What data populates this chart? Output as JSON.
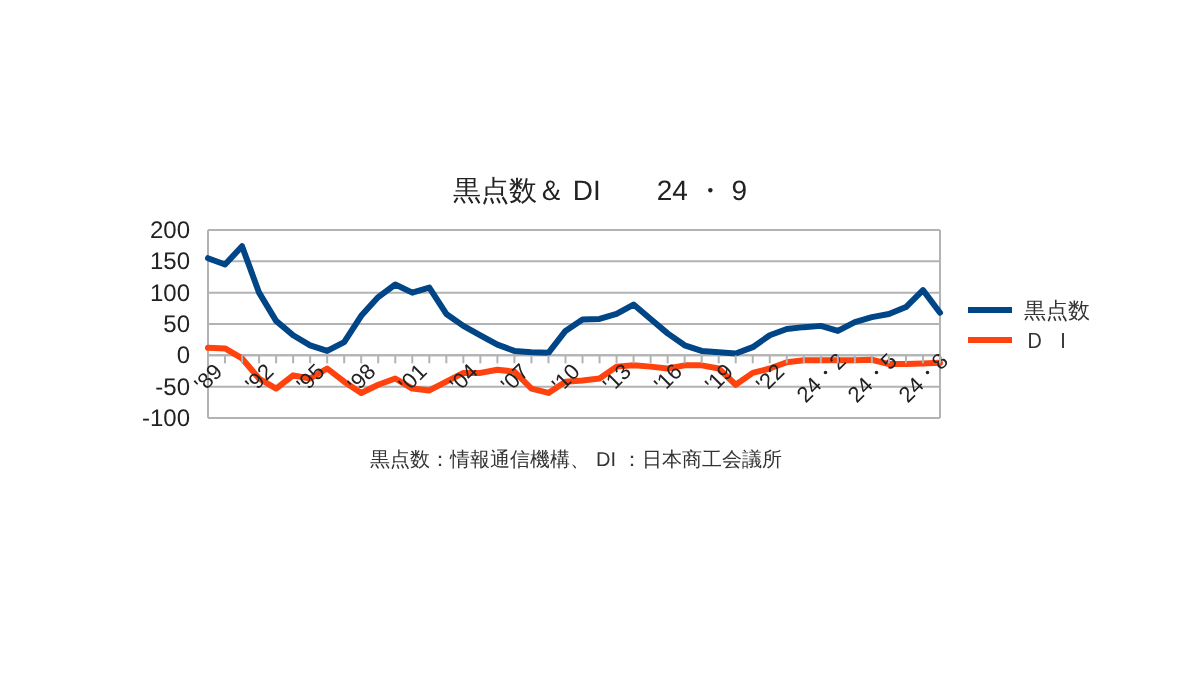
{
  "chart_data": {
    "type": "line",
    "title": "黒点数＆ DI　　24 ・ 9",
    "annotations": [
      "黒点数：情報通信機構、 DI ：日本商工会議所"
    ],
    "categories": [
      "'89",
      null,
      null,
      "'92",
      null,
      null,
      "'95",
      null,
      null,
      "'98",
      null,
      null,
      "'01",
      null,
      null,
      "'04",
      null,
      null,
      "'07",
      null,
      null,
      "'10",
      null,
      null,
      "'13",
      null,
      null,
      "'16",
      null,
      null,
      "'19",
      null,
      null,
      "'22",
      null,
      null,
      "24・2",
      null,
      null,
      "24・5",
      null,
      null,
      "24・8",
      null
    ],
    "series": [
      {
        "name": "黒点数",
        "color": "#004586",
        "values": [
          155,
          145,
          174,
          100,
          55,
          32,
          16,
          7,
          21,
          63,
          93,
          113,
          100,
          108,
          66,
          47,
          32,
          17,
          7,
          5,
          4,
          39,
          57,
          58,
          66,
          81,
          58,
          35,
          16,
          7,
          5,
          3,
          13,
          32,
          42,
          45,
          47,
          39,
          53,
          61,
          66,
          77,
          104,
          68
        ]
      },
      {
        "name": "Ｄ Ｉ",
        "color": "#ff420e",
        "values": [
          12,
          11,
          -5,
          -37,
          -53,
          -32,
          -37,
          -21,
          -42,
          -60,
          -47,
          -37,
          -53,
          -56,
          -42,
          -28,
          -28,
          -23,
          -26,
          -53,
          -60,
          -42,
          -40,
          -37,
          -18,
          -16,
          -18,
          -21,
          -16,
          -16,
          -21,
          -47,
          -28,
          -21,
          -11,
          -8,
          -8,
          -8,
          -8,
          -7,
          -14,
          -14,
          -13,
          -12
        ]
      }
    ],
    "ylim": [
      -100,
      200
    ],
    "yticks": [
      -100,
      -50,
      0,
      50,
      100,
      150,
      200
    ],
    "grid": "y",
    "legend": "right"
  }
}
